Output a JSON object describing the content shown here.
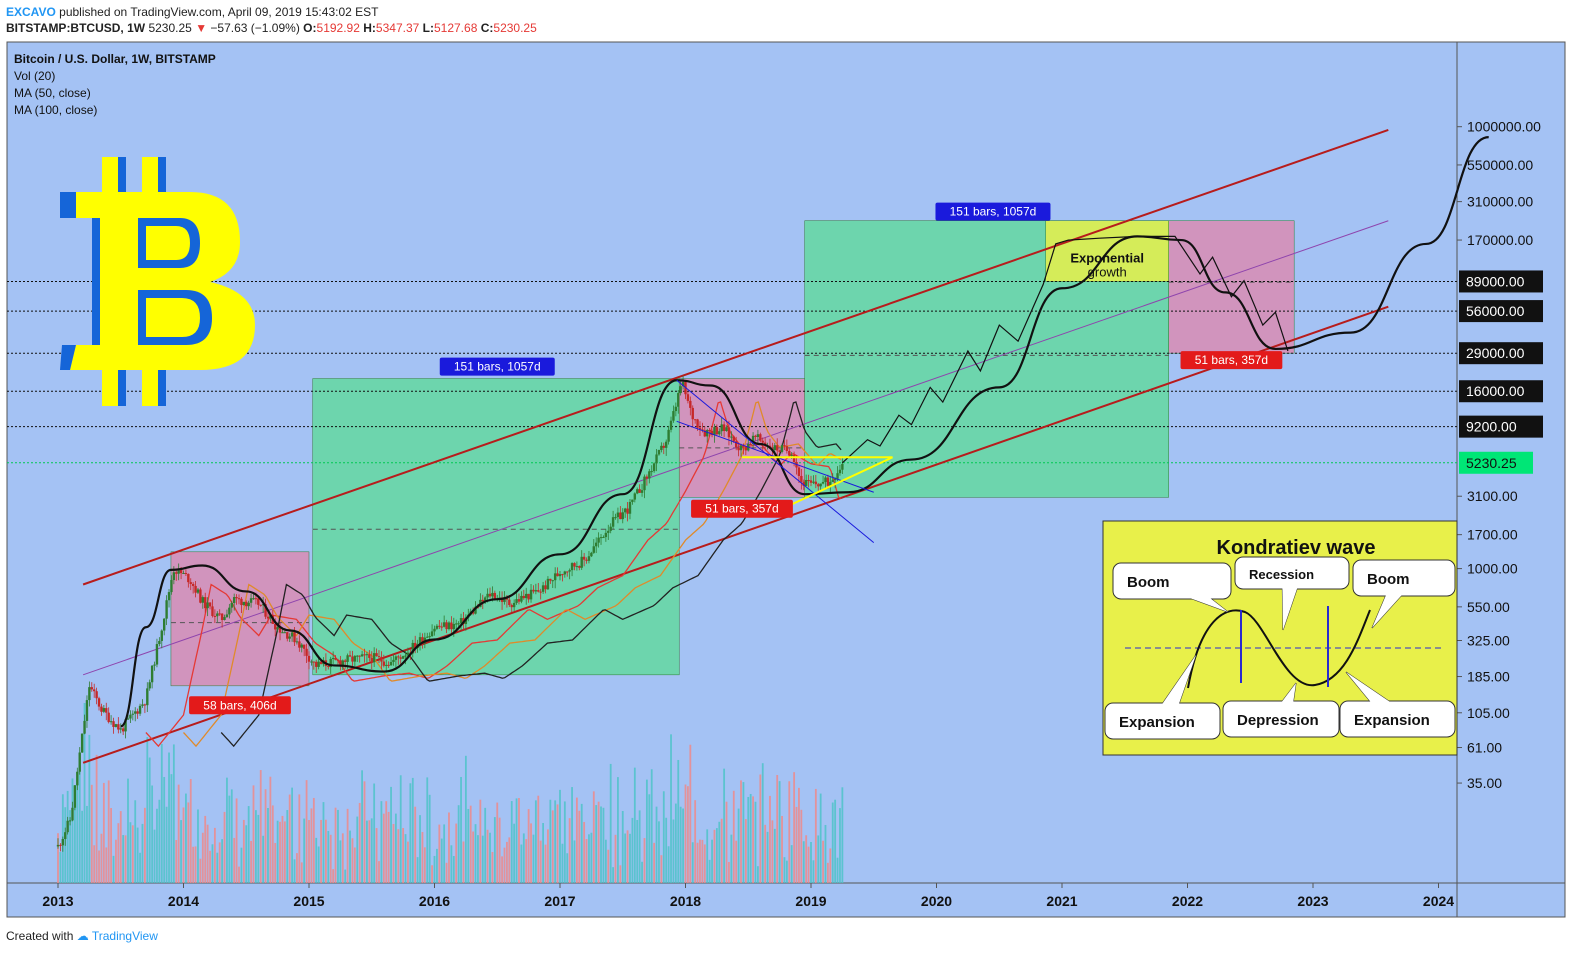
{
  "header": {
    "author": "EXCAVO",
    "published_text": "published on TradingView.com, April 09, 2019 15:43:02 EST",
    "symbol": "BITSTAMP:BTCUSD, 1W",
    "last": "5230.25",
    "change": "−57.63 (−1.09%)",
    "o_label": "O:",
    "o": "5192.92",
    "h_label": "H:",
    "h": "5347.37",
    "l_label": "L:",
    "l": "5127.68",
    "c_label": "C:",
    "c": "5230.25"
  },
  "legend": {
    "title": "Bitcoin / U.S. Dollar, 1W, BITSTAMP",
    "vol": "Vol (20)",
    "ma50": "MA (50, close)",
    "ma100": "MA (100, close)"
  },
  "footer": {
    "created": "Created with",
    "brand": "TradingView"
  },
  "colors": {
    "background": "#a4c2f4",
    "channel": "#b71c1c",
    "green_box": "#64d8a0",
    "pink_box": "#d98cb3",
    "yellow_box": "#e8f04a",
    "up_candle": "#2e7d32",
    "down_candle": "#c62828",
    "label_blue": "#1a1adc",
    "label_red": "#e31a1a",
    "current_price_bg": "#00e676",
    "logo_yellow": "#ffff00",
    "logo_blue": "#1565d8"
  },
  "chart_data": {
    "type": "candlestick",
    "scale": "log",
    "x_ticks": [
      "2013",
      "2014",
      "2015",
      "2016",
      "2017",
      "2018",
      "2019",
      "2020",
      "2021",
      "2022",
      "2023",
      "2024"
    ],
    "y_ticks": [
      "1000000.00",
      "550000.00",
      "310000.00",
      "170000.00",
      "1000.00",
      "550.00",
      "325.00",
      "185.00",
      "105.00",
      "61.00",
      "35.00"
    ],
    "price_levels": [
      {
        "label": "89000.00",
        "value": 89000
      },
      {
        "label": "56000.00",
        "value": 56000
      },
      {
        "label": "29000.00",
        "value": 29000
      },
      {
        "label": "16000.00",
        "value": 16000
      },
      {
        "label": "9200.00",
        "value": 9200
      },
      {
        "label": "3100.00",
        "value": 3100
      },
      {
        "label": "1700.00",
        "value": 1700
      }
    ],
    "current_price": "5230.25",
    "range_labels": [
      {
        "text": "58 bars, 406d",
        "color": "red"
      },
      {
        "text": "151 bars, 1057d",
        "color": "blue"
      },
      {
        "text": "51 bars, 357d",
        "color": "red"
      },
      {
        "text": "151 bars, 1057d",
        "color": "blue"
      },
      {
        "text": "51 bars, 357d",
        "color": "red"
      }
    ],
    "annotation": "Exponential growth",
    "price_path": [
      [
        2013.0,
        13
      ],
      [
        2013.1,
        20
      ],
      [
        2013.25,
        160
      ],
      [
        2013.35,
        110
      ],
      [
        2013.5,
        80
      ],
      [
        2013.7,
        130
      ],
      [
        2013.85,
        500
      ],
      [
        2013.92,
        1000
      ],
      [
        2014.05,
        850
      ],
      [
        2014.15,
        600
      ],
      [
        2014.3,
        450
      ],
      [
        2014.4,
        620
      ],
      [
        2014.6,
        580
      ],
      [
        2014.75,
        400
      ],
      [
        2014.9,
        330
      ],
      [
        2015.05,
        220
      ],
      [
        2015.3,
        240
      ],
      [
        2015.5,
        250
      ],
      [
        2015.65,
        230
      ],
      [
        2015.8,
        280
      ],
      [
        2016.0,
        400
      ],
      [
        2016.2,
        420
      ],
      [
        2016.45,
        680
      ],
      [
        2016.6,
        580
      ],
      [
        2016.85,
        720
      ],
      [
        2017.0,
        950
      ],
      [
        2017.2,
        1150
      ],
      [
        2017.4,
        2000
      ],
      [
        2017.55,
        2600
      ],
      [
        2017.7,
        4300
      ],
      [
        2017.85,
        7500
      ],
      [
        2017.93,
        13500
      ],
      [
        2017.97,
        18500
      ],
      [
        2018.05,
        11000
      ],
      [
        2018.15,
        8500
      ],
      [
        2018.3,
        9000
      ],
      [
        2018.45,
        6400
      ],
      [
        2018.55,
        7800
      ],
      [
        2018.7,
        6600
      ],
      [
        2018.85,
        6300
      ],
      [
        2018.92,
        3900
      ],
      [
        2019.0,
        3700
      ],
      [
        2019.15,
        3900
      ],
      [
        2019.25,
        5230
      ]
    ],
    "projection_path": [
      [
        2019.25,
        5230
      ],
      [
        2019.45,
        7500
      ],
      [
        2019.55,
        6800
      ],
      [
        2019.7,
        11000
      ],
      [
        2019.8,
        9500
      ],
      [
        2019.95,
        17000
      ],
      [
        2020.05,
        13500
      ],
      [
        2020.25,
        30000
      ],
      [
        2020.35,
        22000
      ],
      [
        2020.5,
        45000
      ],
      [
        2020.65,
        35000
      ],
      [
        2020.85,
        85000
      ],
      [
        2020.95,
        160000
      ],
      [
        2021.05,
        170000
      ],
      [
        2021.3,
        175000
      ],
      [
        2021.6,
        180000
      ],
      [
        2021.9,
        180000
      ],
      [
        2022.1,
        100000
      ],
      [
        2022.2,
        130000
      ],
      [
        2022.35,
        70000
      ],
      [
        2022.45,
        90000
      ],
      [
        2022.6,
        45000
      ],
      [
        2022.7,
        55000
      ],
      [
        2022.8,
        30000
      ]
    ],
    "waves_path": [
      [
        2013.5,
        85
      ],
      [
        2013.7,
        400
      ],
      [
        2013.9,
        980
      ],
      [
        2014.15,
        1050
      ],
      [
        2014.5,
        700
      ],
      [
        2014.85,
        380
      ],
      [
        2015.2,
        220
      ],
      [
        2015.6,
        200
      ],
      [
        2016.0,
        330
      ],
      [
        2016.5,
        620
      ],
      [
        2017.0,
        1250
      ],
      [
        2017.5,
        3200
      ],
      [
        2017.93,
        19000
      ],
      [
        2018.2,
        17500
      ],
      [
        2018.6,
        7000
      ],
      [
        2018.95,
        3200
      ],
      [
        2019.3,
        3300
      ],
      [
        2019.8,
        5500
      ],
      [
        2020.5,
        17000
      ],
      [
        2021.0,
        80000
      ],
      [
        2021.6,
        180000
      ],
      [
        2021.95,
        170000
      ],
      [
        2022.3,
        75000
      ],
      [
        2022.7,
        31000
      ],
      [
        2023.3,
        40000
      ],
      [
        2023.9,
        160000
      ],
      [
        2024.4,
        850000
      ]
    ]
  },
  "kondratiev": {
    "title": "Kondratiev wave",
    "labels": [
      "Boom",
      "Recession",
      "Boom",
      "Expansion",
      "Depression",
      "Expansion"
    ]
  }
}
